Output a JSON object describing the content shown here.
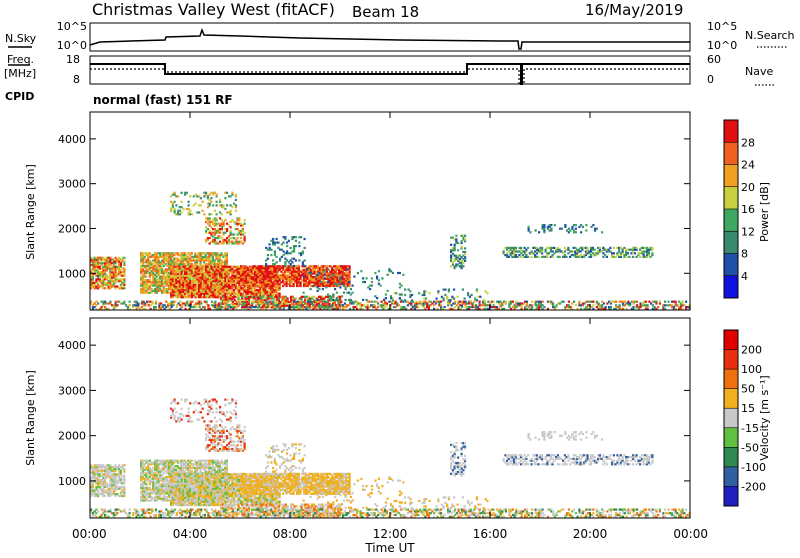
{
  "header": {
    "station": "Christmas Valley West (fitACF)",
    "beam": "Beam 18",
    "date": "16/May/2019"
  },
  "noise_panel": {
    "left_label": "N.Sky",
    "right_label": "N.Search",
    "left_ticks": [
      "10^5",
      "10^0"
    ],
    "right_ticks": [
      "10^5",
      "10^0"
    ]
  },
  "freq_panel": {
    "left_label_1": "Freq.",
    "left_label_2": "[MHz]",
    "right_label": "Nave",
    "left_ticks": [
      "18",
      "8"
    ],
    "right_ticks": [
      "60",
      "0"
    ],
    "cpid_label": "CPID",
    "cpid_value": "normal (fast) 151 RF"
  },
  "chart_data": [
    {
      "type": "heatmap",
      "name": "power",
      "ylabel": "Slant Range [km]",
      "y_ticks": [
        1000,
        2000,
        3000,
        4000
      ],
      "ylim": [
        180,
        4600
      ],
      "colorbar_label": "Power [dB]",
      "colorbar_ticks": [
        "4",
        "8",
        "12",
        "16",
        "20",
        "24",
        "28"
      ],
      "colorbar_colors": [
        "#1010e0",
        "#2050a8",
        "#3a8a6e",
        "#3fa860",
        "#c8d040",
        "#f0a020",
        "#f06020",
        "#e01010"
      ]
    },
    {
      "type": "heatmap",
      "name": "velocity",
      "ylabel": "Slant Range [km]",
      "y_ticks": [
        1000,
        2000,
        3000,
        4000
      ],
      "ylim": [
        180,
        4600
      ],
      "colorbar_label": "Velocity [m s⁻¹]",
      "colorbar_ticks": [
        "200",
        "100",
        "50",
        "15",
        "-15",
        "-50",
        "-100",
        "-200"
      ],
      "colorbar_colors": [
        "#2020c0",
        "#3060a0",
        "#2e8a50",
        "#60c040",
        "#c8c8c8",
        "#f0b020",
        "#f07010",
        "#e83010",
        "#e00000"
      ],
      "xlabel": "Time UT",
      "x_ticks": [
        "00:00",
        "04:00",
        "08:00",
        "12:00",
        "16:00",
        "20:00",
        "00:00"
      ]
    }
  ]
}
